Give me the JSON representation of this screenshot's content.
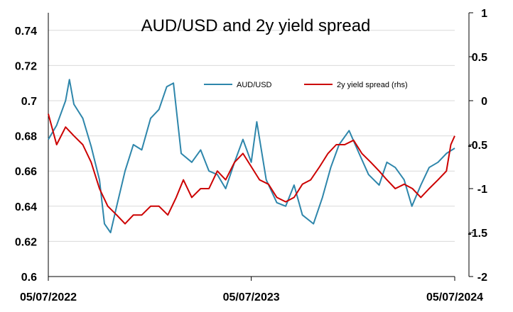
{
  "chart_data": {
    "type": "line",
    "title": "AUD/USD and 2y yield spread",
    "xlabel": "",
    "ylabel": "",
    "x_tick_labels": [
      "05/07/2022",
      "05/07/2023",
      "05/07/2024"
    ],
    "y_left": {
      "ylim": [
        0.6,
        0.75
      ],
      "ticks": [
        "0.6",
        "0.62",
        "0.64",
        "0.66",
        "0.68",
        "0.7",
        "0.72",
        "0.74"
      ]
    },
    "y_right": {
      "ylim": [
        -2,
        1
      ],
      "ticks": [
        "-2",
        "-1.5",
        "-1",
        "-0.5",
        "0",
        "0.5",
        "1"
      ]
    },
    "grid": true,
    "legend_position": "top-right",
    "series": [
      {
        "name": "AUD/USD",
        "axis": "left",
        "color": "#2E86AB",
        "x": [
          "2022-07-05",
          "2022-07-20",
          "2022-08-05",
          "2022-08-12",
          "2022-08-20",
          "2022-09-05",
          "2022-09-20",
          "2022-10-05",
          "2022-10-14",
          "2022-10-25",
          "2022-11-05",
          "2022-11-20",
          "2022-12-05",
          "2022-12-20",
          "2023-01-05",
          "2023-01-20",
          "2023-02-03",
          "2023-02-15",
          "2023-03-01",
          "2023-03-20",
          "2023-04-05",
          "2023-04-20",
          "2023-05-05",
          "2023-05-20",
          "2023-06-05",
          "2023-06-20",
          "2023-07-05",
          "2023-07-15",
          "2023-08-01",
          "2023-08-20",
          "2023-09-05",
          "2023-09-20",
          "2023-10-05",
          "2023-10-25",
          "2023-11-10",
          "2023-11-25",
          "2023-12-10",
          "2023-12-28",
          "2024-01-15",
          "2024-02-01",
          "2024-02-20",
          "2024-03-05",
          "2024-03-20",
          "2024-04-05",
          "2024-04-19",
          "2024-05-05",
          "2024-05-20",
          "2024-06-05",
          "2024-06-20",
          "2024-07-05"
        ],
        "values": [
          0.678,
          0.686,
          0.7,
          0.712,
          0.698,
          0.69,
          0.674,
          0.655,
          0.63,
          0.625,
          0.64,
          0.66,
          0.675,
          0.672,
          0.69,
          0.695,
          0.708,
          0.71,
          0.67,
          0.665,
          0.672,
          0.66,
          0.658,
          0.65,
          0.665,
          0.678,
          0.665,
          0.688,
          0.655,
          0.642,
          0.64,
          0.652,
          0.635,
          0.63,
          0.645,
          0.662,
          0.675,
          0.683,
          0.67,
          0.658,
          0.652,
          0.665,
          0.662,
          0.655,
          0.64,
          0.652,
          0.662,
          0.665,
          0.67,
          0.673
        ]
      },
      {
        "name": "2y yield spread (rhs)",
        "axis": "right",
        "color": "#CC0000",
        "x": [
          "2022-07-05",
          "2022-07-20",
          "2022-08-05",
          "2022-08-20",
          "2022-09-05",
          "2022-09-20",
          "2022-10-05",
          "2022-10-20",
          "2022-11-05",
          "2022-11-20",
          "2022-12-05",
          "2022-12-20",
          "2023-01-05",
          "2023-01-20",
          "2023-02-05",
          "2023-02-20",
          "2023-03-05",
          "2023-03-20",
          "2023-04-05",
          "2023-04-20",
          "2023-05-05",
          "2023-05-20",
          "2023-06-05",
          "2023-06-20",
          "2023-07-05",
          "2023-07-20",
          "2023-08-05",
          "2023-08-20",
          "2023-09-05",
          "2023-09-20",
          "2023-10-05",
          "2023-10-20",
          "2023-11-05",
          "2023-11-20",
          "2023-12-05",
          "2023-12-20",
          "2024-01-05",
          "2024-01-20",
          "2024-02-05",
          "2024-02-20",
          "2024-03-05",
          "2024-03-20",
          "2024-04-05",
          "2024-04-20",
          "2024-05-05",
          "2024-05-20",
          "2024-06-05",
          "2024-06-20",
          "2024-06-28",
          "2024-07-05"
        ],
        "values": [
          -0.15,
          -0.5,
          -0.3,
          -0.4,
          -0.5,
          -0.7,
          -1.0,
          -1.2,
          -1.3,
          -1.4,
          -1.3,
          -1.3,
          -1.2,
          -1.2,
          -1.3,
          -1.1,
          -0.9,
          -1.1,
          -1.0,
          -1.0,
          -0.8,
          -0.9,
          -0.7,
          -0.6,
          -0.75,
          -0.9,
          -0.95,
          -1.1,
          -1.15,
          -1.1,
          -0.95,
          -0.9,
          -0.75,
          -0.6,
          -0.5,
          -0.5,
          -0.45,
          -0.6,
          -0.7,
          -0.8,
          -0.9,
          -1.0,
          -0.95,
          -1.0,
          -1.1,
          -1.0,
          -0.9,
          -0.8,
          -0.5,
          -0.4
        ]
      }
    ]
  }
}
